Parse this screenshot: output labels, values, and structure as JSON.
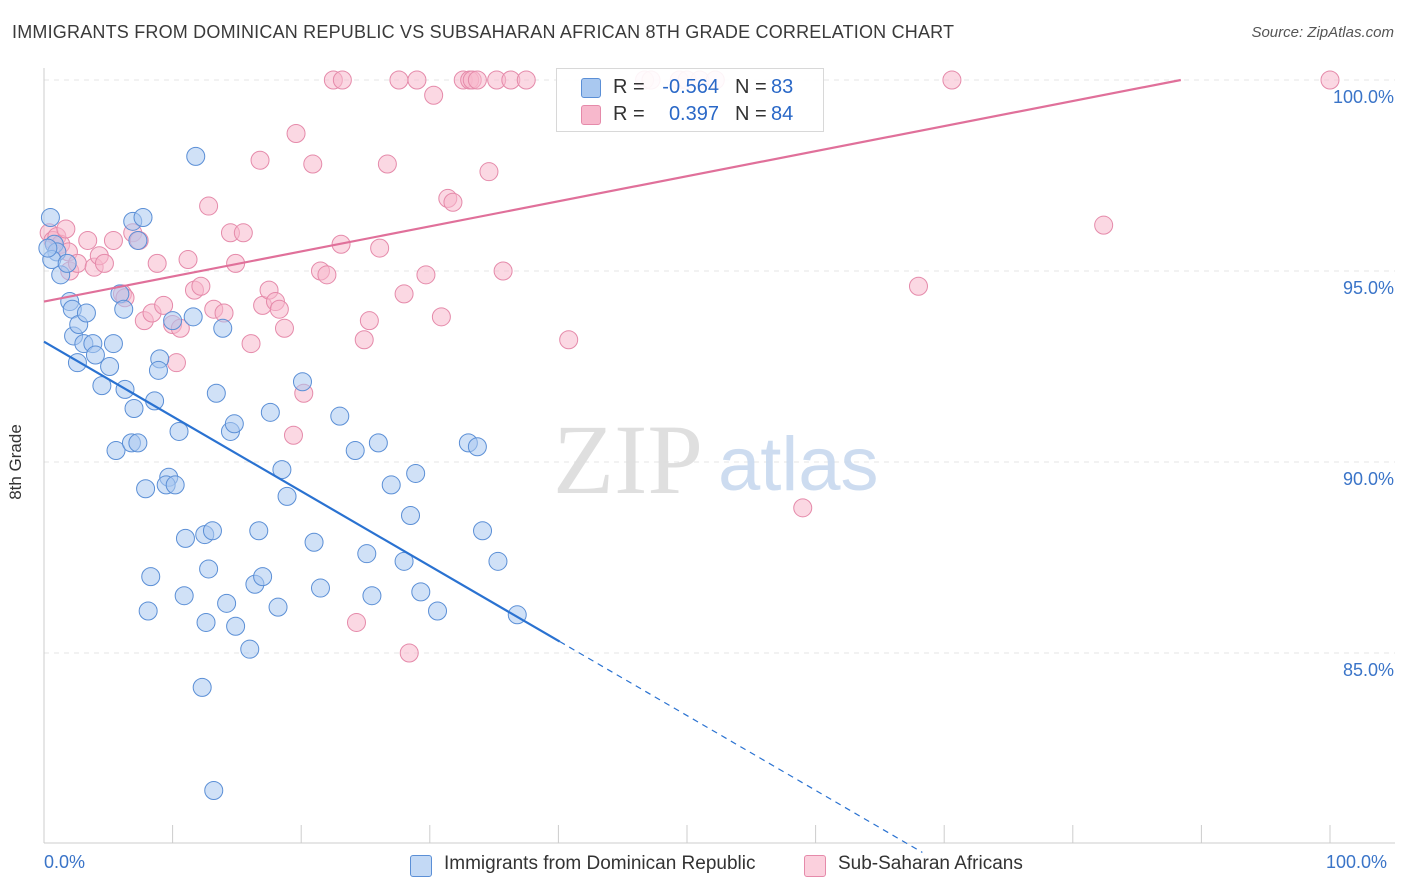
{
  "title": "IMMIGRANTS FROM DOMINICAN REPUBLIC VS SUBSAHARAN AFRICAN 8TH GRADE CORRELATION CHART",
  "source": "Source: ZipAtlas.com",
  "watermark": {
    "zip": "ZIP",
    "atlas": "atlas"
  },
  "colors": {
    "blue_fill": "#a9c8f0",
    "blue_stroke": "#5b8fd6",
    "blue_line": "#2a72d1",
    "pink_fill": "#f7b8cc",
    "pink_stroke": "#e58aaa",
    "pink_line": "#e0709a",
    "grid": "#e4e4e4",
    "tick_text": "#3a74c8"
  },
  "legend_top": [
    {
      "r_label": "R =",
      "r_value": "-0.564",
      "n_label": "N =",
      "n_value": "83"
    },
    {
      "r_label": "R =",
      "r_value": "0.397",
      "n_label": "N =",
      "n_value": "84"
    }
  ],
  "legend_bottom": [
    "Immigrants from Dominican Republic",
    "Sub-Saharan Africans"
  ],
  "y_axis_label": "8th Grade",
  "y_ticks": [
    "100.0%",
    "95.0%",
    "90.0%",
    "85.0%"
  ],
  "x_ticks": [
    "0.0%",
    "100.0%"
  ],
  "chart_data": {
    "type": "scatter",
    "title": "IMMIGRANTS FROM DOMINICAN REPUBLIC VS SUBSAHARAN AFRICAN 8TH GRADE CORRELATION CHART",
    "xlabel": "",
    "ylabel": "8th Grade",
    "xlim": [
      0,
      100
    ],
    "ylim": [
      80.5,
      100.4
    ],
    "grid": true,
    "series": [
      {
        "name": "Immigrants from Dominican Republic",
        "color": "#a9c8f0",
        "trend": {
          "x0": 0,
          "y0": 93.15,
          "x1": 40.1,
          "y1": 85.3,
          "dashed_to_x": 68.3
        },
        "points": [
          [
            0.5,
            96.4
          ],
          [
            0.8,
            95.7
          ],
          [
            1.0,
            95.5
          ],
          [
            0.6,
            95.3
          ],
          [
            1.3,
            94.9
          ],
          [
            1.8,
            95.2
          ],
          [
            2.0,
            94.2
          ],
          [
            2.2,
            94.0
          ],
          [
            2.3,
            93.3
          ],
          [
            2.7,
            93.6
          ],
          [
            2.6,
            92.6
          ],
          [
            3.1,
            93.1
          ],
          [
            3.3,
            93.9
          ],
          [
            3.8,
            93.1
          ],
          [
            4.0,
            92.8
          ],
          [
            4.5,
            92.0
          ],
          [
            5.1,
            92.5
          ],
          [
            5.4,
            93.1
          ],
          [
            5.6,
            90.3
          ],
          [
            5.9,
            94.4
          ],
          [
            6.2,
            94.0
          ],
          [
            6.3,
            91.9
          ],
          [
            6.8,
            90.5
          ],
          [
            6.9,
            96.3
          ],
          [
            7.3,
            95.8
          ],
          [
            7.0,
            91.4
          ],
          [
            7.3,
            90.5
          ],
          [
            7.7,
            96.4
          ],
          [
            7.9,
            89.3
          ],
          [
            8.6,
            91.6
          ],
          [
            8.3,
            87.0
          ],
          [
            8.1,
            86.1
          ],
          [
            9.0,
            92.7
          ],
          [
            8.9,
            92.4
          ],
          [
            9.7,
            89.6
          ],
          [
            9.5,
            89.4
          ],
          [
            10.0,
            93.7
          ],
          [
            10.2,
            89.4
          ],
          [
            10.5,
            90.8
          ],
          [
            10.9,
            86.5
          ],
          [
            11.0,
            88.0
          ],
          [
            11.6,
            93.8
          ],
          [
            11.8,
            98.0
          ],
          [
            12.3,
            84.1
          ],
          [
            12.6,
            85.8
          ],
          [
            12.5,
            88.1
          ],
          [
            12.8,
            87.2
          ],
          [
            13.1,
            88.2
          ],
          [
            13.2,
            81.4
          ],
          [
            13.4,
            91.8
          ],
          [
            13.9,
            93.5
          ],
          [
            14.2,
            86.3
          ],
          [
            14.5,
            90.8
          ],
          [
            14.8,
            91.0
          ],
          [
            14.9,
            85.7
          ],
          [
            16.0,
            85.1
          ],
          [
            16.4,
            86.8
          ],
          [
            16.7,
            88.2
          ],
          [
            17.0,
            87.0
          ],
          [
            17.6,
            91.3
          ],
          [
            18.2,
            86.2
          ],
          [
            18.5,
            89.8
          ],
          [
            18.9,
            89.1
          ],
          [
            20.1,
            92.1
          ],
          [
            21.0,
            87.9
          ],
          [
            21.5,
            86.7
          ],
          [
            23.0,
            91.2
          ],
          [
            24.2,
            90.3
          ],
          [
            25.1,
            87.6
          ],
          [
            25.5,
            86.5
          ],
          [
            26.0,
            90.5
          ],
          [
            27.0,
            89.4
          ],
          [
            28.0,
            87.4
          ],
          [
            28.5,
            88.6
          ],
          [
            28.9,
            89.7
          ],
          [
            29.3,
            86.6
          ],
          [
            30.6,
            86.1
          ],
          [
            33.0,
            90.5
          ],
          [
            33.7,
            90.4
          ],
          [
            34.1,
            88.2
          ],
          [
            35.3,
            87.4
          ],
          [
            36.8,
            86.0
          ],
          [
            0.3,
            95.6
          ]
        ]
      },
      {
        "name": "Sub-Saharan Africans",
        "color": "#f7b8cc",
        "trend": {
          "x0": 0,
          "y0": 94.2,
          "x1": 88.4,
          "y1": 100.0
        },
        "points": [
          [
            0.4,
            96.0
          ],
          [
            0.7,
            95.8
          ],
          [
            1.0,
            95.9
          ],
          [
            1.3,
            95.7
          ],
          [
            1.7,
            96.1
          ],
          [
            1.9,
            95.5
          ],
          [
            2.0,
            95.0
          ],
          [
            2.6,
            95.2
          ],
          [
            3.4,
            95.8
          ],
          [
            3.9,
            95.1
          ],
          [
            4.3,
            95.4
          ],
          [
            4.7,
            95.2
          ],
          [
            5.4,
            95.8
          ],
          [
            6.1,
            94.4
          ],
          [
            6.3,
            94.3
          ],
          [
            6.9,
            96.0
          ],
          [
            7.4,
            95.8
          ],
          [
            7.8,
            93.7
          ],
          [
            8.4,
            93.9
          ],
          [
            8.8,
            95.2
          ],
          [
            9.3,
            94.1
          ],
          [
            10.0,
            93.6
          ],
          [
            10.3,
            92.6
          ],
          [
            10.6,
            93.5
          ],
          [
            11.2,
            95.3
          ],
          [
            11.7,
            94.5
          ],
          [
            12.2,
            94.6
          ],
          [
            12.8,
            96.7
          ],
          [
            13.2,
            94.0
          ],
          [
            14.0,
            93.9
          ],
          [
            14.5,
            96.0
          ],
          [
            14.9,
            95.2
          ],
          [
            15.5,
            96.0
          ],
          [
            16.1,
            93.1
          ],
          [
            16.8,
            97.9
          ],
          [
            17.0,
            94.1
          ],
          [
            17.5,
            94.5
          ],
          [
            18.0,
            94.2
          ],
          [
            18.3,
            94.0
          ],
          [
            18.7,
            93.5
          ],
          [
            19.4,
            90.7
          ],
          [
            19.6,
            98.6
          ],
          [
            20.2,
            91.8
          ],
          [
            20.9,
            97.8
          ],
          [
            21.5,
            95.0
          ],
          [
            22.0,
            94.9
          ],
          [
            22.5,
            100.0
          ],
          [
            23.1,
            95.7
          ],
          [
            23.2,
            100.0
          ],
          [
            24.3,
            85.8
          ],
          [
            24.9,
            93.2
          ],
          [
            25.3,
            93.7
          ],
          [
            26.1,
            95.6
          ],
          [
            26.7,
            97.8
          ],
          [
            27.6,
            100.0
          ],
          [
            28.0,
            94.4
          ],
          [
            28.4,
            85.0
          ],
          [
            29.0,
            100.0
          ],
          [
            29.7,
            94.9
          ],
          [
            30.3,
            99.6
          ],
          [
            30.9,
            93.8
          ],
          [
            31.4,
            96.9
          ],
          [
            31.8,
            96.8
          ],
          [
            32.6,
            100.0
          ],
          [
            33.1,
            100.0
          ],
          [
            33.3,
            100.0
          ],
          [
            33.7,
            100.0
          ],
          [
            34.6,
            97.6
          ],
          [
            35.2,
            100.0
          ],
          [
            35.7,
            95.0
          ],
          [
            36.3,
            100.0
          ],
          [
            37.5,
            100.0
          ],
          [
            40.8,
            93.2
          ],
          [
            46.7,
            100.0
          ],
          [
            47.2,
            100.0
          ],
          [
            49.4,
            100.0
          ],
          [
            50.0,
            100.0
          ],
          [
            51.0,
            100.0
          ],
          [
            52.2,
            100.0
          ],
          [
            59.0,
            88.8
          ],
          [
            68.0,
            94.6
          ],
          [
            70.6,
            100.0
          ],
          [
            82.4,
            96.2
          ],
          [
            100.0,
            100.0
          ]
        ]
      }
    ]
  }
}
